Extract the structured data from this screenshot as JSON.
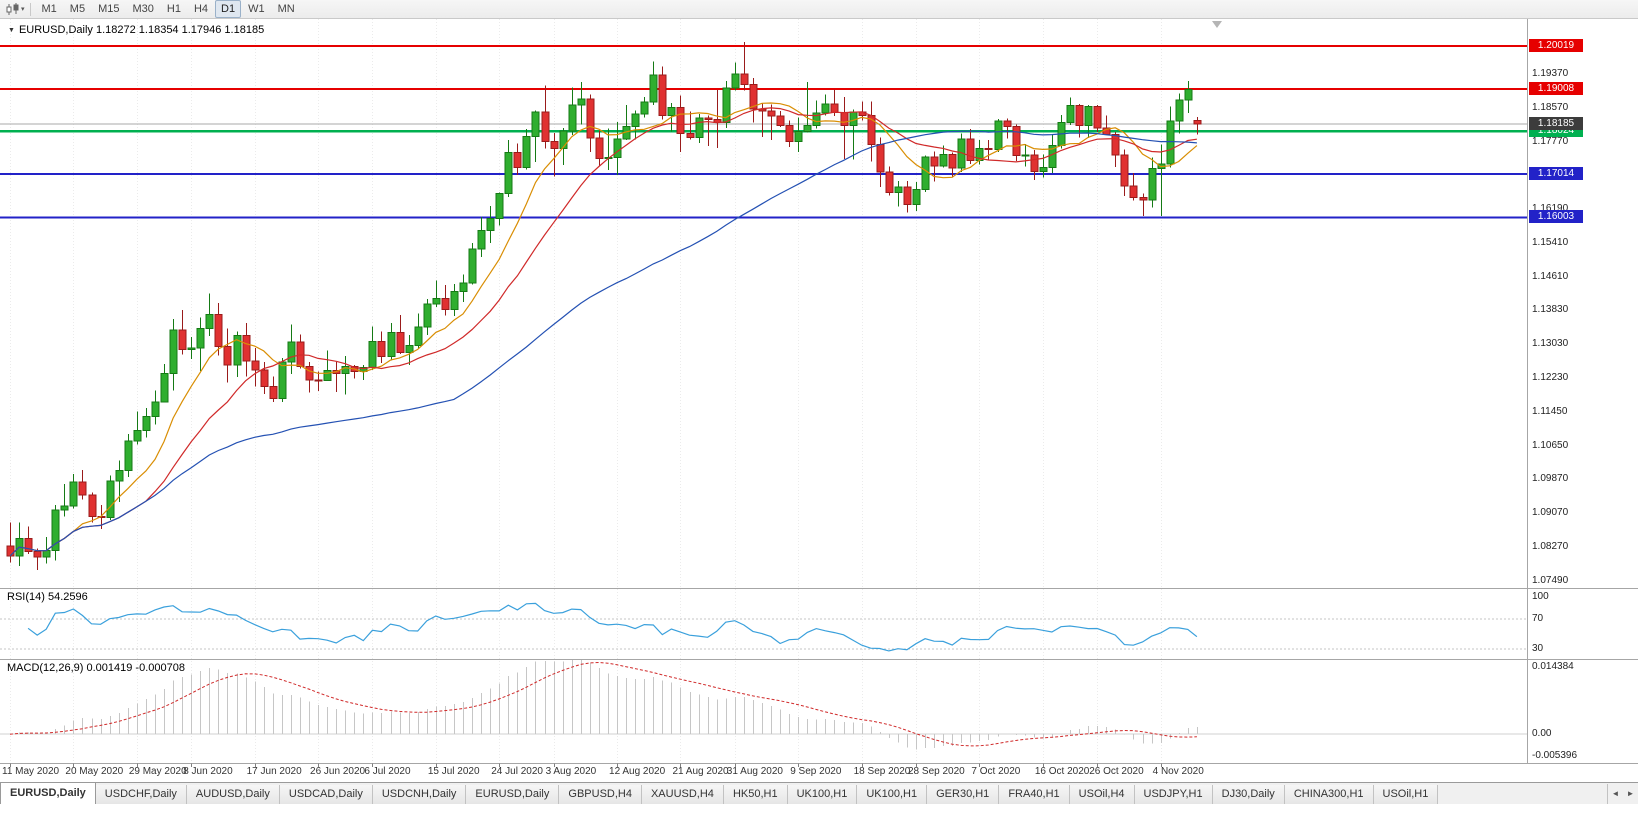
{
  "toolbar": {
    "timeframes": [
      "M1",
      "M5",
      "M15",
      "M30",
      "H1",
      "H4",
      "D1",
      "W1",
      "MN"
    ],
    "active_timeframe": "D1"
  },
  "icons": {
    "title_arrow": "▼",
    "toolbar_caret": "▾",
    "scroll_left": "◄",
    "scroll_right": "►"
  },
  "chart": {
    "title": "EURUSD,Daily",
    "ohlc_text": "1.18272 1.18354 1.17946 1.18185"
  },
  "indicators": {
    "rsi_label": "RSI(14) 54.2596",
    "macd_label": "MACD(12,26,9) 0.001419 -0.000708"
  },
  "axes": {
    "price_ticks": [
      "1.19370",
      "1.18570",
      "1.17770",
      "1.16190",
      "1.15410",
      "1.14610",
      "1.13830",
      "1.13030",
      "1.12230",
      "1.11450",
      "1.10650",
      "1.09870",
      "1.09070",
      "1.08270",
      "1.07490"
    ],
    "current_price": "1.18185",
    "rsi_ticks": [
      "100",
      "70",
      "30"
    ],
    "macd_ticks": [
      "0.014384",
      "0.00",
      "-0.005396"
    ]
  },
  "hlines": [
    {
      "price": 1.20019,
      "label": "1.20019",
      "color": "#e60000",
      "width": 2
    },
    {
      "price": 1.19008,
      "label": "1.19008",
      "color": "#e60000",
      "width": 2
    },
    {
      "price": 1.18024,
      "label": "1.18024",
      "color": "#00b050",
      "width": 2.5
    },
    {
      "price": 1.17014,
      "label": "1.17014",
      "color": "#2222c8",
      "width": 2
    },
    {
      "price": 1.16003,
      "label": "1.16003",
      "color": "#2222c8",
      "width": 2
    }
  ],
  "colors": {
    "bull": "#2fae2f",
    "bull_border": "#157a15",
    "bear": "#e03131",
    "bear_border": "#9a1b1b",
    "ma_fast": "#d98e04",
    "ma_mid": "#d02a2a",
    "ma_slow": "#2451b3",
    "rsi_line": "#3aa0dc",
    "macd_hist": "#c6c6c6",
    "macd_signal": "#d02a2a",
    "bid_line": "#a9a9a9",
    "current_badge": "#3c3c3c"
  },
  "chart_data": {
    "type": "candlestick",
    "symbol": "EURUSD",
    "timeframe": "Daily",
    "ylim": [
      1.0732,
      1.2065
    ],
    "x_labels": [
      {
        "i": 0,
        "t": "11 May 2020"
      },
      {
        "i": 7,
        "t": "20 May 2020"
      },
      {
        "i": 14,
        "t": "29 May 2020"
      },
      {
        "i": 20,
        "t": "8 Jun 2020"
      },
      {
        "i": 27,
        "t": "17 Jun 2020"
      },
      {
        "i": 34,
        "t": "26 Jun 2020"
      },
      {
        "i": 40,
        "t": "6 Jul 2020"
      },
      {
        "i": 47,
        "t": "15 Jul 2020"
      },
      {
        "i": 54,
        "t": "24 Jul 2020"
      },
      {
        "i": 60,
        "t": "3 Aug 2020"
      },
      {
        "i": 67,
        "t": "12 Aug 2020"
      },
      {
        "i": 74,
        "t": "21 Aug 2020"
      },
      {
        "i": 80,
        "t": "31 Aug 2020"
      },
      {
        "i": 87,
        "t": "9 Sep 2020"
      },
      {
        "i": 94,
        "t": "18 Sep 2020"
      },
      {
        "i": 100,
        "t": "28 Sep 2020"
      },
      {
        "i": 107,
        "t": "7 Oct 2020"
      },
      {
        "i": 114,
        "t": "16 Oct 2020"
      },
      {
        "i": 120,
        "t": "26 Oct 2020"
      },
      {
        "i": 127,
        "t": "4 Nov 2020"
      }
    ],
    "candles": [
      [
        1.083,
        1.0885,
        1.0792,
        1.0807
      ],
      [
        1.0807,
        1.0885,
        1.0784,
        1.0848
      ],
      [
        1.0848,
        1.0876,
        1.0812,
        1.0818
      ],
      [
        1.0818,
        1.0825,
        1.0774,
        1.0805
      ],
      [
        1.0805,
        1.0851,
        1.0789,
        1.082
      ],
      [
        1.082,
        1.0927,
        1.0797,
        1.0915
      ],
      [
        1.0915,
        1.0976,
        1.0899,
        1.0924
      ],
      [
        1.0924,
        1.0999,
        1.0918,
        1.098
      ],
      [
        1.098,
        1.1008,
        1.0939,
        1.095
      ],
      [
        1.095,
        1.0956,
        1.0885,
        1.09
      ],
      [
        1.09,
        1.0927,
        1.087,
        1.0897
      ],
      [
        1.0897,
        1.0996,
        1.0891,
        1.0983
      ],
      [
        1.0983,
        1.1031,
        1.0934,
        1.1007
      ],
      [
        1.1007,
        1.1093,
        1.0992,
        1.1076
      ],
      [
        1.1076,
        1.1145,
        1.1068,
        1.1101
      ],
      [
        1.1101,
        1.1154,
        1.1084,
        1.1134
      ],
      [
        1.1134,
        1.1195,
        1.1115,
        1.1168
      ],
      [
        1.1168,
        1.1257,
        1.1166,
        1.1234
      ],
      [
        1.1234,
        1.1362,
        1.1195,
        1.1337
      ],
      [
        1.1337,
        1.1383,
        1.1279,
        1.1291
      ],
      [
        1.1291,
        1.132,
        1.1268,
        1.1294
      ],
      [
        1.1294,
        1.1366,
        1.124,
        1.134
      ],
      [
        1.134,
        1.1422,
        1.1322,
        1.1373
      ],
      [
        1.1373,
        1.14,
        1.1277,
        1.1298
      ],
      [
        1.1298,
        1.134,
        1.1213,
        1.1254
      ],
      [
        1.1254,
        1.1333,
        1.1226,
        1.1323
      ],
      [
        1.1323,
        1.1353,
        1.1228,
        1.1264
      ],
      [
        1.1264,
        1.1294,
        1.1204,
        1.1243
      ],
      [
        1.1243,
        1.1262,
        1.1186,
        1.1204
      ],
      [
        1.1204,
        1.1228,
        1.1168,
        1.1176
      ],
      [
        1.1176,
        1.1271,
        1.1168,
        1.1261
      ],
      [
        1.1261,
        1.1349,
        1.1233,
        1.1308
      ],
      [
        1.1308,
        1.1326,
        1.1246,
        1.1251
      ],
      [
        1.1251,
        1.1261,
        1.119,
        1.1219
      ],
      [
        1.1219,
        1.1239,
        1.1194,
        1.1218
      ],
      [
        1.1218,
        1.1288,
        1.1217,
        1.1242
      ],
      [
        1.1242,
        1.1262,
        1.1191,
        1.1234
      ],
      [
        1.1234,
        1.1276,
        1.1185,
        1.1251
      ],
      [
        1.1251,
        1.1255,
        1.1223,
        1.1239
      ],
      [
        1.1239,
        1.1254,
        1.1219,
        1.1248
      ],
      [
        1.1248,
        1.1345,
        1.1243,
        1.1309
      ],
      [
        1.1309,
        1.1333,
        1.1259,
        1.1274
      ],
      [
        1.1274,
        1.1353,
        1.1265,
        1.133
      ],
      [
        1.133,
        1.1371,
        1.128,
        1.1284
      ],
      [
        1.1284,
        1.1325,
        1.1254,
        1.13
      ],
      [
        1.13,
        1.1375,
        1.1292,
        1.1343
      ],
      [
        1.1343,
        1.1409,
        1.1325,
        1.1397
      ],
      [
        1.1397,
        1.1452,
        1.139,
        1.141
      ],
      [
        1.141,
        1.1442,
        1.137,
        1.1384
      ],
      [
        1.1384,
        1.1444,
        1.1369,
        1.1427
      ],
      [
        1.1427,
        1.1467,
        1.1402,
        1.1446
      ],
      [
        1.1446,
        1.154,
        1.1443,
        1.1526
      ],
      [
        1.1526,
        1.1601,
        1.1507,
        1.157
      ],
      [
        1.157,
        1.1627,
        1.154,
        1.1598
      ],
      [
        1.1598,
        1.1658,
        1.1581,
        1.1656
      ],
      [
        1.1656,
        1.1782,
        1.1648,
        1.1752
      ],
      [
        1.1752,
        1.1773,
        1.17,
        1.1717
      ],
      [
        1.1717,
        1.1807,
        1.1712,
        1.179
      ],
      [
        1.179,
        1.1851,
        1.173,
        1.1847
      ],
      [
        1.1847,
        1.1909,
        1.1762,
        1.1778
      ],
      [
        1.1778,
        1.1798,
        1.1696,
        1.1762
      ],
      [
        1.1762,
        1.181,
        1.1723,
        1.1803
      ],
      [
        1.1803,
        1.1905,
        1.1793,
        1.1863
      ],
      [
        1.1863,
        1.1917,
        1.1818,
        1.1878
      ],
      [
        1.1878,
        1.1888,
        1.1754,
        1.1786
      ],
      [
        1.1786,
        1.1804,
        1.1722,
        1.1738
      ],
      [
        1.1738,
        1.1808,
        1.1711,
        1.174
      ],
      [
        1.174,
        1.1824,
        1.17,
        1.1784
      ],
      [
        1.1784,
        1.1864,
        1.1782,
        1.1813
      ],
      [
        1.1813,
        1.1851,
        1.1783,
        1.1842
      ],
      [
        1.1842,
        1.1882,
        1.1834,
        1.1871
      ],
      [
        1.1871,
        1.1966,
        1.1863,
        1.1934
      ],
      [
        1.1934,
        1.1954,
        1.183,
        1.1839
      ],
      [
        1.1839,
        1.1868,
        1.1802,
        1.1858
      ],
      [
        1.1858,
        1.1886,
        1.1754,
        1.1797
      ],
      [
        1.1797,
        1.1848,
        1.1783,
        1.1787
      ],
      [
        1.1787,
        1.1843,
        1.1774,
        1.1833
      ],
      [
        1.1833,
        1.1839,
        1.1767,
        1.183
      ],
      [
        1.183,
        1.1899,
        1.1763,
        1.1823
      ],
      [
        1.1823,
        1.192,
        1.181,
        1.1903
      ],
      [
        1.1903,
        1.1963,
        1.1898,
        1.1936
      ],
      [
        1.1936,
        1.2011,
        1.1898,
        1.1912
      ],
      [
        1.1912,
        1.1927,
        1.1822,
        1.1854
      ],
      [
        1.1854,
        1.1868,
        1.1789,
        1.185
      ],
      [
        1.185,
        1.1865,
        1.1781,
        1.1838
      ],
      [
        1.1838,
        1.1849,
        1.1812,
        1.1816
      ],
      [
        1.1816,
        1.1827,
        1.1765,
        1.1778
      ],
      [
        1.1778,
        1.1834,
        1.1753,
        1.1802
      ],
      [
        1.1802,
        1.1917,
        1.1799,
        1.1815
      ],
      [
        1.1815,
        1.1874,
        1.1809,
        1.1845
      ],
      [
        1.1845,
        1.1888,
        1.1839,
        1.1866
      ],
      [
        1.1866,
        1.19,
        1.1838,
        1.1846
      ],
      [
        1.1846,
        1.1882,
        1.1737,
        1.1816
      ],
      [
        1.1816,
        1.1853,
        1.1736,
        1.1847
      ],
      [
        1.1847,
        1.1872,
        1.1827,
        1.1839
      ],
      [
        1.1839,
        1.1872,
        1.1731,
        1.1771
      ],
      [
        1.1771,
        1.1787,
        1.1672,
        1.1707
      ],
      [
        1.1707,
        1.1719,
        1.1651,
        1.1659
      ],
      [
        1.1659,
        1.1686,
        1.1626,
        1.1672
      ],
      [
        1.1672,
        1.1685,
        1.1612,
        1.1631
      ],
      [
        1.1631,
        1.1683,
        1.1615,
        1.1665
      ],
      [
        1.1665,
        1.1745,
        1.166,
        1.1742
      ],
      [
        1.1742,
        1.1755,
        1.1684,
        1.1721
      ],
      [
        1.1721,
        1.1769,
        1.1717,
        1.1748
      ],
      [
        1.1748,
        1.1752,
        1.1695,
        1.1716
      ],
      [
        1.1716,
        1.1797,
        1.1706,
        1.1784
      ],
      [
        1.1784,
        1.1807,
        1.1725,
        1.1733
      ],
      [
        1.1733,
        1.1782,
        1.1724,
        1.1762
      ],
      [
        1.1762,
        1.1781,
        1.1733,
        1.1759
      ],
      [
        1.1759,
        1.1831,
        1.1754,
        1.1826
      ],
      [
        1.1826,
        1.1832,
        1.1785,
        1.1813
      ],
      [
        1.1813,
        1.1818,
        1.1732,
        1.1745
      ],
      [
        1.1745,
        1.1772,
        1.172,
        1.1746
      ],
      [
        1.1746,
        1.1758,
        1.1688,
        1.1708
      ],
      [
        1.1708,
        1.1747,
        1.1694,
        1.1717
      ],
      [
        1.1717,
        1.1794,
        1.1704,
        1.1769
      ],
      [
        1.1769,
        1.184,
        1.1762,
        1.1823
      ],
      [
        1.1823,
        1.1881,
        1.1817,
        1.1862
      ],
      [
        1.1862,
        1.1866,
        1.1787,
        1.1816
      ],
      [
        1.1816,
        1.1864,
        1.1786,
        1.186
      ],
      [
        1.186,
        1.1864,
        1.18,
        1.181
      ],
      [
        1.181,
        1.1839,
        1.1793,
        1.1795
      ],
      [
        1.1795,
        1.18,
        1.1718,
        1.1746
      ],
      [
        1.1746,
        1.1759,
        1.165,
        1.1674
      ],
      [
        1.1674,
        1.1704,
        1.164,
        1.1647
      ],
      [
        1.1647,
        1.1656,
        1.1603,
        1.1641
      ],
      [
        1.1641,
        1.174,
        1.1623,
        1.1715
      ],
      [
        1.1715,
        1.1771,
        1.1603,
        1.1725
      ],
      [
        1.1725,
        1.186,
        1.1717,
        1.1826
      ],
      [
        1.1826,
        1.189,
        1.1797,
        1.1875
      ],
      [
        1.1875,
        1.192,
        1.1845,
        1.19
      ],
      [
        1.18272,
        1.18354,
        1.17946,
        1.18185
      ]
    ],
    "moving_averages": [
      {
        "name": "ma-fast",
        "period": 8,
        "color": "#d98e04"
      },
      {
        "name": "ma-mid",
        "period": 16,
        "color": "#d02a2a"
      },
      {
        "name": "ma-slow",
        "period": 50,
        "color": "#2451b3"
      }
    ],
    "rsi": {
      "period": 14,
      "current": 54.2596,
      "levels": [
        70,
        30
      ],
      "range": [
        17,
        110
      ]
    },
    "macd": {
      "fast": 12,
      "slow": 26,
      "signal": 9,
      "current_main": 0.001419,
      "current_signal": -0.000708,
      "range": [
        -0.0057,
        0.0147
      ]
    }
  },
  "tabbar": {
    "tabs": [
      "EURUSD,Daily",
      "USDCHF,Daily",
      "AUDUSD,Daily",
      "USDCAD,Daily",
      "USDCNH,Daily",
      "EURUSD,Daily",
      "GBPUSD,H4",
      "XAUUSD,H4",
      "HK50,H1",
      "UK100,H1",
      "UK100,H1",
      "GER30,H1",
      "FRA40,H1",
      "USOil,H4",
      "USDJPY,H1",
      "DJ30,Daily",
      "CHINA300,H1",
      "USOil,H1"
    ],
    "active_index": 0
  }
}
